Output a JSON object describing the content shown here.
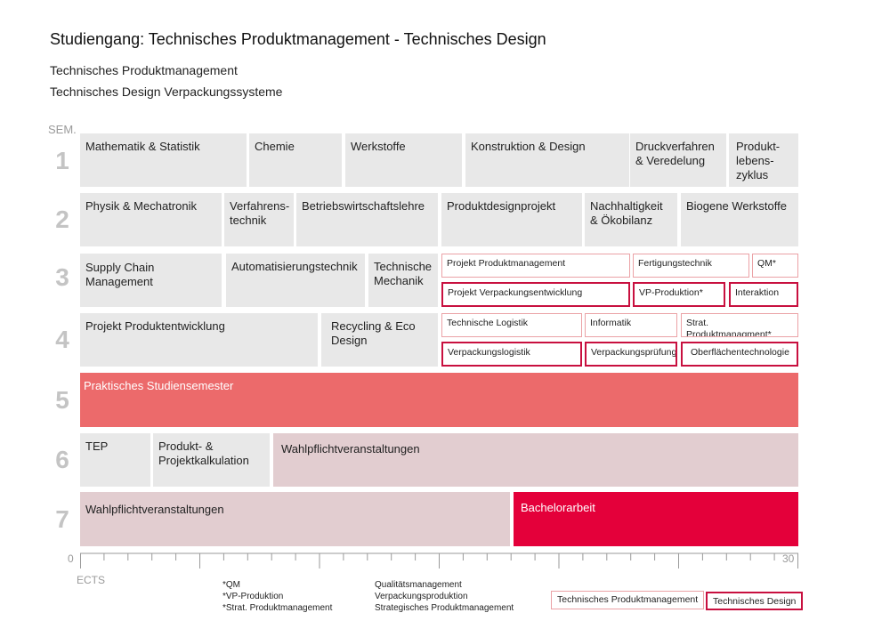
{
  "title": "Studiengang: Technisches Produktmanagement - Technisches Design",
  "subtitle1": "Technisches Produktmanagement",
  "subtitle2": "Technisches Design Verpackungssysteme",
  "sem_label": "SEM.",
  "semesters": [
    "1",
    "2",
    "3",
    "4",
    "5",
    "6",
    "7"
  ],
  "axis": {
    "start_label": "0",
    "end_label": "30",
    "unit_label": "ECTS"
  },
  "colors": {
    "grey_block": "#e8e8e8",
    "rose_block": "#e2cdd0",
    "coral_block": "#ec6a6b",
    "red_block": "#e4003a",
    "tp_outline": "#eba2a6",
    "td_outline": "#c8103f"
  },
  "modules": {
    "s1": [
      "Mathematik & Statistik",
      "Chemie",
      "Werkstoffe",
      "Konstruktion & Design",
      "Druckverfahren & Veredelung",
      "Produkt-\nlebens-\nzyklus"
    ],
    "s2": [
      "Physik & Mechatronik",
      "Verfahrens-\ntechnik",
      "Betriebswirtschaftslehre",
      "Produktdesignprojekt",
      "Nachhaltigkeit & Ökobilanz",
      "Biogene Werkstoffe"
    ],
    "s3": [
      "Supply Chain Management",
      "Automatisierungstechnik",
      "Technische Mechanik"
    ],
    "s3_tp": [
      "Projekt Produktmanagement",
      "Fertigungstechnik",
      "QM*"
    ],
    "s3_td": [
      "Projekt Verpackungsentwicklung",
      "VP-Produktion*",
      "Interaktion"
    ],
    "s4": [
      "Projekt Produktentwicklung",
      "Recycling & Eco Design"
    ],
    "s4_tp": [
      "Technische Logistik",
      "Informatik",
      "Strat. Produktmanagment*"
    ],
    "s4_td": [
      "Verpackungslogistik",
      "Verpackungsprüfung",
      "Oberflächentechnologie"
    ],
    "s5": [
      "Praktisches Studiensemester"
    ],
    "s6": [
      "TEP",
      "Produkt- &\nProjektkalkulation",
      "Wahlpflichtveranstaltungen"
    ],
    "s7": [
      "Wahlpflichtveranstaltungen",
      "Bachelorarbeit"
    ]
  },
  "footnotes": {
    "abbr": [
      "*QM",
      "*VP-Produktion",
      "*Strat. Produktmanagement"
    ],
    "full": [
      "Qualitätsmanagement",
      "Verpackungsproduktion",
      "Strategisches Produktmanagement"
    ]
  },
  "legend": {
    "tp": "Technisches Produktmanagement",
    "td": "Technisches Design"
  }
}
